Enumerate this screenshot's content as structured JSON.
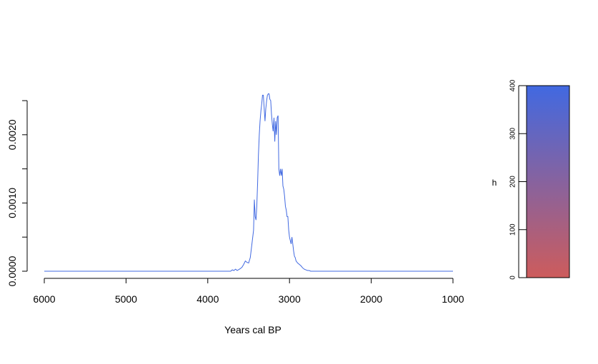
{
  "chart_data": {
    "type": "line",
    "title": "",
    "xlabel": "Years cal BP",
    "ylabel": "",
    "x_reversed": true,
    "xlim": [
      6000,
      1000
    ],
    "ylim": [
      0,
      0.0025
    ],
    "x_ticks": [
      6000,
      5000,
      4000,
      3000,
      2000,
      1000
    ],
    "y_ticks": [
      0,
      0.0005,
      0.001,
      0.0015,
      0.002,
      0.0025
    ],
    "y_tick_labels": [
      {
        "value": 0,
        "label": "0.0000"
      },
      {
        "value": 0.001,
        "label": "0.0010"
      },
      {
        "value": 0.002,
        "label": "0.0020"
      }
    ],
    "grid": false,
    "series": [
      {
        "color": "#4169E1",
        "x": [
          6000,
          3720,
          3700,
          3680,
          3660,
          3640,
          3600,
          3580,
          3560,
          3540,
          3520,
          3500,
          3480,
          3460,
          3440,
          3430,
          3420,
          3410,
          3400,
          3390,
          3380,
          3370,
          3360,
          3350,
          3340,
          3330,
          3320,
          3310,
          3300,
          3290,
          3280,
          3270,
          3260,
          3250,
          3240,
          3230,
          3220,
          3210,
          3200,
          3190,
          3180,
          3170,
          3160,
          3150,
          3140,
          3130,
          3120,
          3110,
          3100,
          3090,
          3080,
          3070,
          3060,
          3050,
          3040,
          3030,
          3020,
          3010,
          3000,
          2990,
          2980,
          2970,
          2960,
          2950,
          2940,
          2930,
          2920,
          2900,
          2880,
          2860,
          2840,
          2820,
          2800,
          2780,
          2760,
          2740,
          2720,
          1000
        ],
        "y": [
          0.0,
          0.0,
          2e-05,
          1e-05,
          3e-05,
          1e-05,
          4e-05,
          6e-05,
          0.0001,
          0.00015,
          0.00013,
          0.00012,
          0.0002,
          0.0004,
          0.0006,
          0.00105,
          0.0008,
          0.00075,
          0.00095,
          0.0013,
          0.0017,
          0.002,
          0.0022,
          0.00235,
          0.00245,
          0.00258,
          0.00258,
          0.0024,
          0.0022,
          0.00238,
          0.0025,
          0.00258,
          0.0026,
          0.0026,
          0.00252,
          0.0025,
          0.0023,
          0.00215,
          0.00205,
          0.00225,
          0.0019,
          0.0022,
          0.002,
          0.00225,
          0.00228,
          0.0015,
          0.0014,
          0.0015,
          0.0014,
          0.0015,
          0.00125,
          0.0012,
          0.0011,
          0.00095,
          0.0009,
          0.0008,
          0.0008,
          0.0006,
          0.0005,
          0.00045,
          0.0004,
          0.0005,
          0.0004,
          0.0003,
          0.00022,
          0.0002,
          0.00015,
          0.00012,
          0.0001,
          8e-05,
          5e-05,
          3e-05,
          2e-05,
          1e-05,
          1e-05,
          0.0,
          0.0,
          0.0
        ]
      }
    ],
    "colorbar": {
      "label": "h",
      "range": [
        0,
        400
      ],
      "ticks": [
        0,
        100,
        200,
        300,
        400
      ],
      "color_low": "#CD5C5C",
      "color_high": "#4169E1"
    }
  }
}
